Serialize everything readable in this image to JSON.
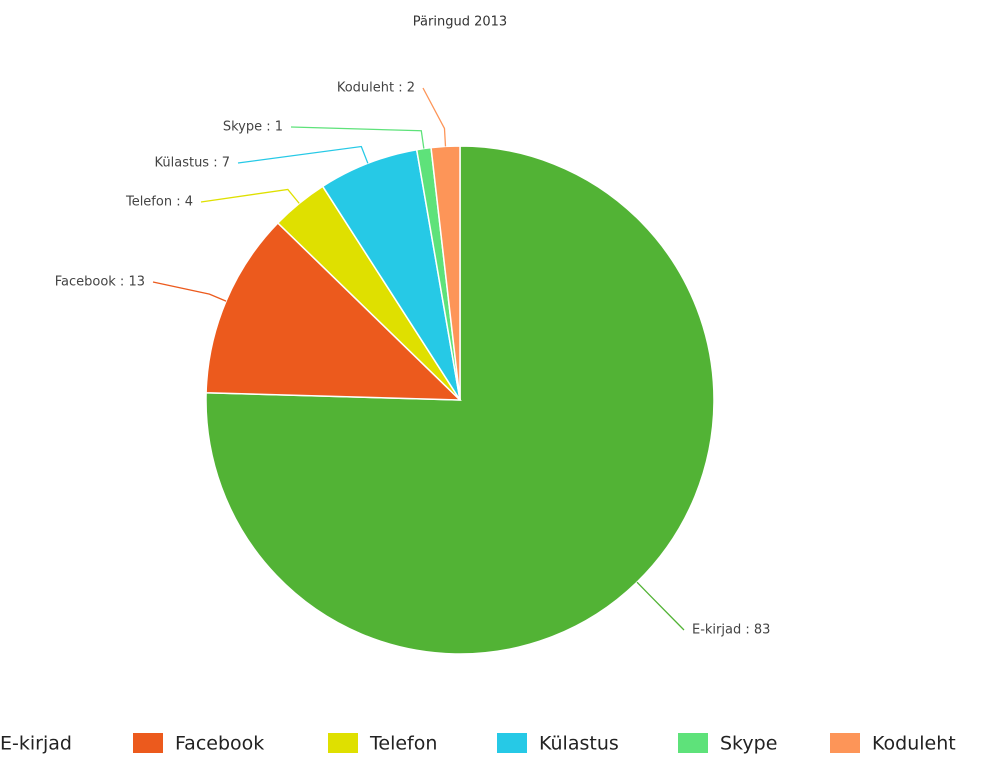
{
  "chart_data": {
    "type": "pie",
    "title": "Päringud 2013",
    "categories": [
      "E-kirjad",
      "Facebook",
      "Telefon",
      "Külastus",
      "Skype",
      "Koduleht"
    ],
    "values": [
      83,
      13,
      4,
      7,
      1,
      2
    ],
    "value_labels": [
      "E-kirjad : 83",
      "Facebook : 13",
      "Telefon : 4",
      "Külastus : 7",
      "Skype : 1",
      "Koduleht : 2"
    ],
    "colors": [
      "#52b335",
      "#ec5a1d",
      "#dfe000",
      "#26c9e6",
      "#5ee27a",
      "#fd9558"
    ],
    "legend": "bottom"
  }
}
